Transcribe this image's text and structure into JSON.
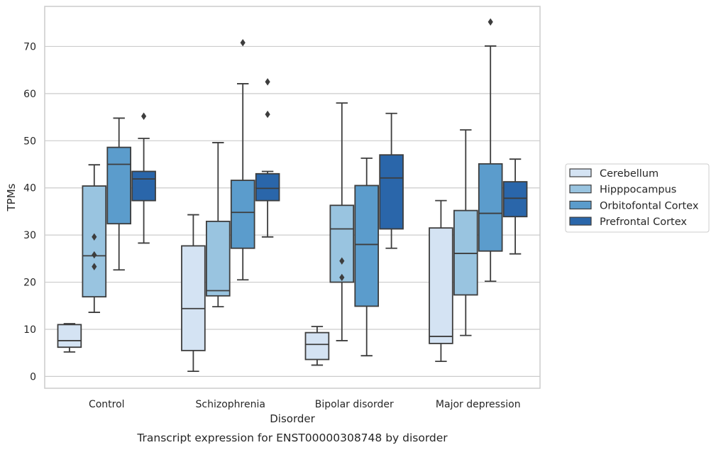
{
  "chart_data": {
    "type": "boxplot",
    "caption": "Transcript expression for ENST00000308748 by disorder",
    "xlabel": "Disorder",
    "ylabel": "TPMs",
    "ylim": [
      -2.5,
      78.5
    ],
    "yticks": [
      0,
      10,
      20,
      30,
      40,
      50,
      60,
      70
    ],
    "grid": "horizontal",
    "legend_position": "right",
    "categories": [
      "Control",
      "Schizophrenia",
      "Bipolar disorder",
      "Major depression"
    ],
    "series": [
      {
        "name": "Cerebellum",
        "color": "#d4e3f3",
        "boxes": [
          {
            "whislo": 5.2,
            "q1": 6.2,
            "med": 7.6,
            "q3": 11.0,
            "whishi": 11.2,
            "fliers": []
          },
          {
            "whislo": 1.1,
            "q1": 5.5,
            "med": 14.4,
            "q3": 27.7,
            "whishi": 34.3,
            "fliers": []
          },
          {
            "whislo": 2.4,
            "q1": 3.6,
            "med": 6.8,
            "q3": 9.3,
            "whishi": 10.6,
            "fliers": []
          },
          {
            "whislo": 3.2,
            "q1": 7.0,
            "med": 8.5,
            "q3": 31.5,
            "whishi": 37.3,
            "fliers": []
          }
        ]
      },
      {
        "name": "Hipppocampus",
        "color": "#99c4e0",
        "boxes": [
          {
            "whislo": 13.6,
            "q1": 16.9,
            "med": 25.6,
            "q3": 40.4,
            "whishi": 44.9,
            "fliers": [
              23.3,
              25.8,
              29.6
            ]
          },
          {
            "whislo": 14.8,
            "q1": 17.1,
            "med": 18.2,
            "q3": 32.9,
            "whishi": 49.6,
            "fliers": []
          },
          {
            "whislo": 7.6,
            "q1": 20.0,
            "med": 31.3,
            "q3": 36.3,
            "whishi": 58.0,
            "fliers": [
              21.0,
              24.5
            ]
          },
          {
            "whislo": 8.7,
            "q1": 17.3,
            "med": 26.1,
            "q3": 35.2,
            "whishi": 52.3,
            "fliers": []
          }
        ]
      },
      {
        "name": "Orbitofontal Cortex",
        "color": "#5b9ccc",
        "boxes": [
          {
            "whislo": 22.6,
            "q1": 32.4,
            "med": 45.0,
            "q3": 48.6,
            "whishi": 54.8,
            "fliers": []
          },
          {
            "whislo": 20.5,
            "q1": 27.2,
            "med": 34.8,
            "q3": 41.6,
            "whishi": 62.1,
            "fliers": [
              70.8
            ]
          },
          {
            "whislo": 4.4,
            "q1": 14.9,
            "med": 28.0,
            "q3": 40.5,
            "whishi": 46.3,
            "fliers": []
          },
          {
            "whislo": 20.2,
            "q1": 26.6,
            "med": 34.6,
            "q3": 45.1,
            "whishi": 70.1,
            "fliers": [
              75.2
            ]
          }
        ]
      },
      {
        "name": "Prefrontal Cortex",
        "color": "#2a66aa",
        "boxes": [
          {
            "whislo": 28.3,
            "q1": 37.3,
            "med": 41.9,
            "q3": 43.5,
            "whishi": 50.5,
            "fliers": [
              55.2
            ]
          },
          {
            "whislo": 29.6,
            "q1": 37.3,
            "med": 39.9,
            "q3": 43.0,
            "whishi": 43.5,
            "fliers": [
              55.6,
              62.5
            ]
          },
          {
            "whislo": 27.2,
            "q1": 31.3,
            "med": 42.1,
            "q3": 47.0,
            "whishi": 55.8,
            "fliers": []
          },
          {
            "whislo": 26.0,
            "q1": 33.9,
            "med": 37.8,
            "q3": 41.3,
            "whishi": 46.1,
            "fliers": []
          }
        ]
      }
    ]
  }
}
